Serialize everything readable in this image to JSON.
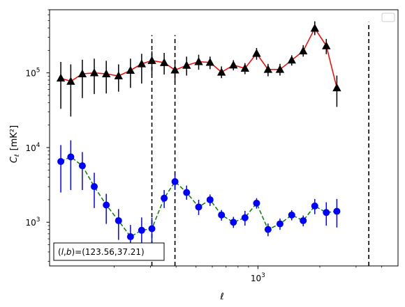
{
  "chart_data": {
    "type": "scatter",
    "title": "",
    "xlabel": "ℓ",
    "ylabel_main": "C",
    "ylabel_sub": "ℓ",
    "ylabel_units": "[mK²]",
    "xscale": "log",
    "yscale": "log",
    "xlim": [
      97,
      4800
    ],
    "ylim": [
      260,
      700000
    ],
    "x_major_ticks": [
      {
        "value": 1000,
        "base": "10",
        "exp": "3"
      }
    ],
    "y_major_ticks": [
      {
        "value": 1000,
        "base": "10",
        "exp": "3"
      },
      {
        "value": 10000,
        "base": "10",
        "exp": "4"
      },
      {
        "value": 100000,
        "base": "10",
        "exp": "5"
      }
    ],
    "grid": false,
    "legend": {
      "placement": "top-right",
      "entries": []
    },
    "vertical_lines": [
      {
        "x": 305,
        "y_from": 260,
        "y_to": 320000,
        "color": "#000000",
        "style": "dashed"
      },
      {
        "x": 395,
        "y_from": 260,
        "y_to": 320000,
        "color": "#000000",
        "style": "dashed"
      },
      {
        "x": 3460,
        "y_from": 260,
        "y_to": 480000,
        "color": "#000000",
        "style": "dashed"
      }
    ],
    "annotation": {
      "text": "(l,b)=(123.56,37.21)",
      "italic_l": "l",
      "italic_b": "b",
      "prefix": "(",
      "mid": ",",
      "suffix": ")=(123.56,37.21)",
      "placement": "bottom-left"
    },
    "series": [
      {
        "marker": "triangle",
        "marker_color": "#000000",
        "line_color": "#ff0000",
        "line_style": "solid",
        "points": [
          {
            "x": 110,
            "y": 85000,
            "err_lo": 33000,
            "err_hi": 140000
          },
          {
            "x": 123,
            "y": 77000,
            "err_lo": 26000,
            "err_hi": 130000
          },
          {
            "x": 140,
            "y": 97000,
            "err_lo": 46000,
            "err_hi": 150000
          },
          {
            "x": 160,
            "y": 100000,
            "err_lo": 52000,
            "err_hi": 155000
          },
          {
            "x": 183,
            "y": 97000,
            "err_lo": 53000,
            "err_hi": 145000
          },
          {
            "x": 210,
            "y": 91000,
            "err_lo": 56000,
            "err_hi": 130000
          },
          {
            "x": 240,
            "y": 108000,
            "err_lo": 63000,
            "err_hi": 155000
          },
          {
            "x": 272,
            "y": 132000,
            "err_lo": 72000,
            "err_hi": 180000
          },
          {
            "x": 305,
            "y": 146000,
            "err_lo": 94000,
            "err_hi": 195000
          },
          {
            "x": 350,
            "y": 137000,
            "err_lo": 95000,
            "err_hi": 185000
          },
          {
            "x": 395,
            "y": 109000,
            "err_lo": 76000,
            "err_hi": 150000
          },
          {
            "x": 450,
            "y": 126000,
            "err_lo": 92000,
            "err_hi": 165000
          },
          {
            "x": 515,
            "y": 141000,
            "err_lo": 110000,
            "err_hi": 175000
          },
          {
            "x": 585,
            "y": 138000,
            "err_lo": 112000,
            "err_hi": 165000
          },
          {
            "x": 665,
            "y": 102000,
            "err_lo": 85000,
            "err_hi": 122000
          },
          {
            "x": 760,
            "y": 127000,
            "err_lo": 108000,
            "err_hi": 148000
          },
          {
            "x": 865,
            "y": 115000,
            "err_lo": 96000,
            "err_hi": 135000
          },
          {
            "x": 985,
            "y": 182000,
            "err_lo": 150000,
            "err_hi": 215000
          },
          {
            "x": 1120,
            "y": 111000,
            "err_lo": 90000,
            "err_hi": 132000
          },
          {
            "x": 1280,
            "y": 111000,
            "err_lo": 92000,
            "err_hi": 132000
          },
          {
            "x": 1460,
            "y": 148000,
            "err_lo": 125000,
            "err_hi": 172000
          },
          {
            "x": 1660,
            "y": 196000,
            "err_lo": 165000,
            "err_hi": 235000
          },
          {
            "x": 1890,
            "y": 395000,
            "err_lo": 320000,
            "err_hi": 490000
          },
          {
            "x": 2150,
            "y": 230000,
            "err_lo": 178000,
            "err_hi": 285000
          },
          {
            "x": 2420,
            "y": 63000,
            "err_lo": 35000,
            "err_hi": 92000
          }
        ]
      },
      {
        "marker": "circle",
        "marker_color": "#0000ff",
        "line_color": "#008000",
        "line_style": "dashed",
        "points": [
          {
            "x": 110,
            "y": 6500,
            "err_lo": 2500,
            "err_hi": 10800
          },
          {
            "x": 123,
            "y": 7500,
            "err_lo": 2700,
            "err_hi": 12500
          },
          {
            "x": 140,
            "y": 5700,
            "err_lo": 2700,
            "err_hi": 8700
          },
          {
            "x": 160,
            "y": 3000,
            "err_lo": 1550,
            "err_hi": 4600
          },
          {
            "x": 183,
            "y": 1700,
            "err_lo": 950,
            "err_hi": 2400
          },
          {
            "x": 210,
            "y": 1050,
            "err_lo": 580,
            "err_hi": 1500
          },
          {
            "x": 240,
            "y": 640,
            "err_lo": 360,
            "err_hi": 920
          },
          {
            "x": 272,
            "y": 780,
            "err_lo": 400,
            "err_hi": 1160
          },
          {
            "x": 305,
            "y": 820,
            "err_lo": 460,
            "err_hi": 1150
          },
          {
            "x": 350,
            "y": 2100,
            "err_lo": 1550,
            "err_hi": 2700
          },
          {
            "x": 395,
            "y": 3500,
            "err_lo": 2700,
            "err_hi": 4400
          },
          {
            "x": 450,
            "y": 2500,
            "err_lo": 2000,
            "err_hi": 3100
          },
          {
            "x": 515,
            "y": 1600,
            "err_lo": 1250,
            "err_hi": 2000
          },
          {
            "x": 585,
            "y": 2000,
            "err_lo": 1650,
            "err_hi": 2350
          },
          {
            "x": 665,
            "y": 1250,
            "err_lo": 1050,
            "err_hi": 1460
          },
          {
            "x": 760,
            "y": 1000,
            "err_lo": 840,
            "err_hi": 1180
          },
          {
            "x": 865,
            "y": 1150,
            "err_lo": 900,
            "err_hi": 1420
          },
          {
            "x": 985,
            "y": 1800,
            "err_lo": 1520,
            "err_hi": 2100
          },
          {
            "x": 1120,
            "y": 800,
            "err_lo": 650,
            "err_hi": 960
          },
          {
            "x": 1280,
            "y": 950,
            "err_lo": 790,
            "err_hi": 1120
          },
          {
            "x": 1460,
            "y": 1250,
            "err_lo": 1060,
            "err_hi": 1450
          },
          {
            "x": 1660,
            "y": 1050,
            "err_lo": 880,
            "err_hi": 1230
          },
          {
            "x": 1890,
            "y": 1650,
            "err_lo": 1280,
            "err_hi": 2050
          },
          {
            "x": 2150,
            "y": 1350,
            "err_lo": 900,
            "err_hi": 1850
          },
          {
            "x": 2420,
            "y": 1400,
            "err_lo": 850,
            "err_hi": 2050
          }
        ]
      }
    ]
  }
}
